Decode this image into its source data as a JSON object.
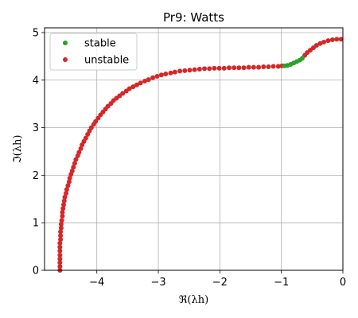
{
  "chart_data": {
    "type": "scatter",
    "title": "Pr9: Watts",
    "xlabel": "ℜ(λh)",
    "ylabel": "ℑ(λh)",
    "xlim": [
      -4.85,
      0.0
    ],
    "ylim": [
      0.0,
      5.1
    ],
    "x_ticks": [
      -4,
      -3,
      -2,
      -1,
      0
    ],
    "x_tick_labels": [
      "−4",
      "−3",
      "−2",
      "−1",
      "0"
    ],
    "y_ticks": [
      0,
      1,
      2,
      3,
      4,
      5
    ],
    "y_tick_labels": [
      "0",
      "1",
      "2",
      "3",
      "4",
      "5"
    ],
    "grid": true,
    "legend_position": "top-left",
    "series": [
      {
        "name": "stable",
        "color": "#2ca02c",
        "x": [
          -0.95,
          -0.9,
          -0.85,
          -0.8,
          -0.75,
          -0.7,
          -0.66
        ],
        "y": [
          4.3,
          4.31,
          4.33,
          4.36,
          4.39,
          4.42,
          4.46
        ]
      },
      {
        "name": "unstable",
        "color": "#d62728",
        "x": [
          -4.6,
          -4.6,
          -4.6,
          -4.6,
          -4.6,
          -4.6,
          -4.6,
          -4.6,
          -4.59,
          -4.59,
          -4.59,
          -4.58,
          -4.58,
          -4.57,
          -4.56,
          -4.56,
          -4.55,
          -4.54,
          -4.53,
          -4.52,
          -4.5,
          -4.49,
          -4.47,
          -4.45,
          -4.44,
          -4.42,
          -4.4,
          -4.38,
          -4.36,
          -4.34,
          -4.31,
          -4.29,
          -4.26,
          -4.24,
          -4.21,
          -4.18,
          -4.15,
          -4.12,
          -4.09,
          -4.05,
          -4.02,
          -3.98,
          -3.94,
          -3.9,
          -3.86,
          -3.82,
          -3.77,
          -3.73,
          -3.68,
          -3.63,
          -3.58,
          -3.52,
          -3.47,
          -3.41,
          -3.35,
          -3.29,
          -3.22,
          -3.16,
          -3.09,
          -3.02,
          -2.95,
          -2.88,
          -2.8,
          -2.73,
          -2.65,
          -2.57,
          -2.49,
          -2.41,
          -2.33,
          -2.25,
          -2.17,
          -2.09,
          -2.01,
          -1.93,
          -1.85,
          -1.77,
          -1.69,
          -1.61,
          -1.53,
          -1.45,
          -1.37,
          -1.29,
          -1.21,
          -1.13,
          -1.05,
          -0.99,
          -0.62,
          -0.58,
          -0.53,
          -0.48,
          -0.43,
          -0.37,
          -0.31,
          -0.24,
          -0.17,
          -0.1,
          -0.03
        ],
        "y": [
          0.0,
          0.08,
          0.16,
          0.24,
          0.32,
          0.41,
          0.49,
          0.57,
          0.65,
          0.73,
          0.81,
          0.89,
          0.97,
          1.05,
          1.14,
          1.22,
          1.3,
          1.38,
          1.46,
          1.54,
          1.62,
          1.7,
          1.78,
          1.86,
          1.94,
          2.02,
          2.09,
          2.17,
          2.25,
          2.33,
          2.41,
          2.48,
          2.56,
          2.64,
          2.71,
          2.78,
          2.86,
          2.93,
          3.0,
          3.07,
          3.13,
          3.2,
          3.27,
          3.33,
          3.39,
          3.45,
          3.51,
          3.57,
          3.62,
          3.67,
          3.72,
          3.77,
          3.82,
          3.86,
          3.9,
          3.94,
          3.98,
          4.01,
          4.05,
          4.08,
          4.11,
          4.13,
          4.15,
          4.17,
          4.19,
          4.2,
          4.21,
          4.22,
          4.23,
          4.24,
          4.24,
          4.25,
          4.25,
          4.25,
          4.26,
          4.26,
          4.26,
          4.26,
          4.27,
          4.27,
          4.27,
          4.28,
          4.28,
          4.29,
          4.29,
          4.3,
          4.52,
          4.58,
          4.63,
          4.68,
          4.73,
          4.77,
          4.8,
          4.83,
          4.85,
          4.86,
          4.86
        ]
      }
    ]
  }
}
